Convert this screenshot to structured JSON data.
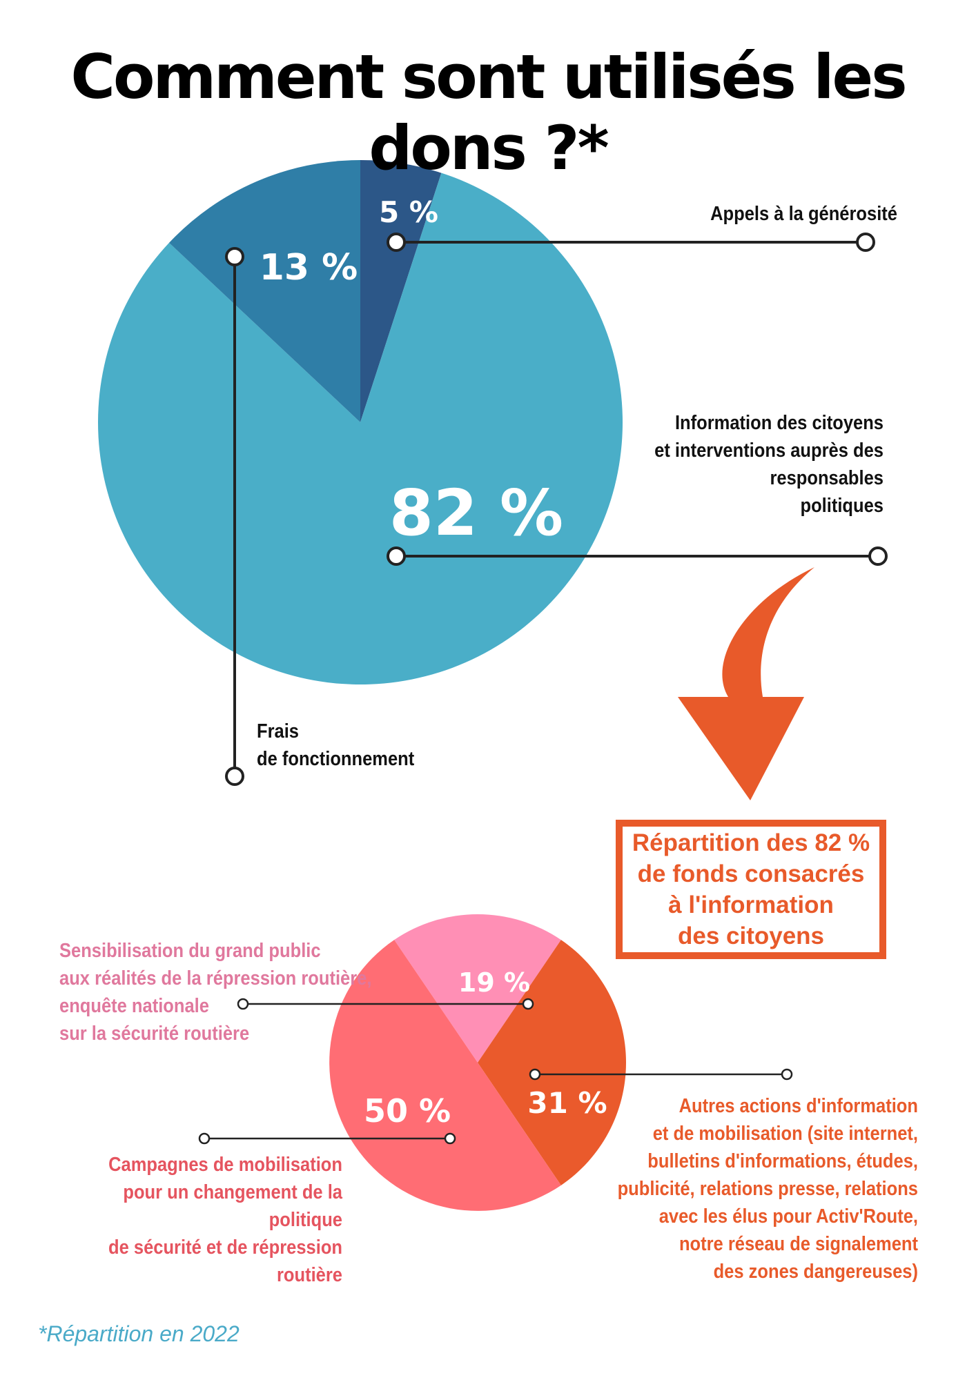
{
  "title": "Comment sont utilisés les dons ?*",
  "chart_data": [
    {
      "type": "pie",
      "slices": [
        {
          "label": "Appels à la générosité",
          "value": 5,
          "value_label": "5 %",
          "color": "#2c5788"
        },
        {
          "label": "Information des citoyens et interventions auprès des responsables politiques",
          "value": 82,
          "value_label": "82 %",
          "color": "#4aaec8"
        },
        {
          "label": "Frais de fonctionnement",
          "value": 13,
          "value_label": "13 %",
          "color": "#2f7ea7"
        }
      ]
    },
    {
      "type": "pie",
      "title": "Répartition des 82 % de fonds consacrés à l'information des citoyens",
      "slices": [
        {
          "label": "Sensibilisation du grand public aux réalités de la répression routière, enquête nationale sur la sécurité routière",
          "value": 19,
          "value_label": "19 %",
          "color": "#ff8fb5"
        },
        {
          "label": "Autres actions d'information et de mobilisation (site internet, bulletins d'informations, études, publicité, relations presse, relations avec les élus pour Activ'Route, notre réseau de signalement des zones dangereuses)",
          "value": 31,
          "value_label": "31 %",
          "color": "#ea5a2c"
        },
        {
          "label": "Campagnes de mobilisation pour un changement de la politique de sécurité et de répression routière",
          "value": 50,
          "value_label": "50 %",
          "color": "#ff6d74"
        }
      ]
    }
  ],
  "labels": {
    "appels": "Appels à la générosité",
    "information": "Information des citoyens\net interventions auprès des\nresponsables\npolitiques",
    "frais": "Frais\nde fonctionnement",
    "sensibilisation": "Sensibilisation du grand public\naux réalités de la répression routière,\nenquête nationale\nsur la sécurité routière",
    "autres": "Autres actions d'information\net de mobilisation (site internet,\nbulletins d'informations, études,\npublicité, relations presse, relations\navec les élus pour Activ'Route,\nnotre réseau de signalement\ndes zones dangereuses)",
    "campagnes": "Campagnes de mobilisation\npour un changement de la politique\nde sécurité et de répression routière"
  },
  "callout": "Répartition des 82 %\nde fonds consacrés\nà l'information\ndes citoyens",
  "footnote": "*Répartition en 2022",
  "colors": {
    "arrow": "#e85a2a",
    "leader": "#222222",
    "footnote": "#4aaac8"
  }
}
